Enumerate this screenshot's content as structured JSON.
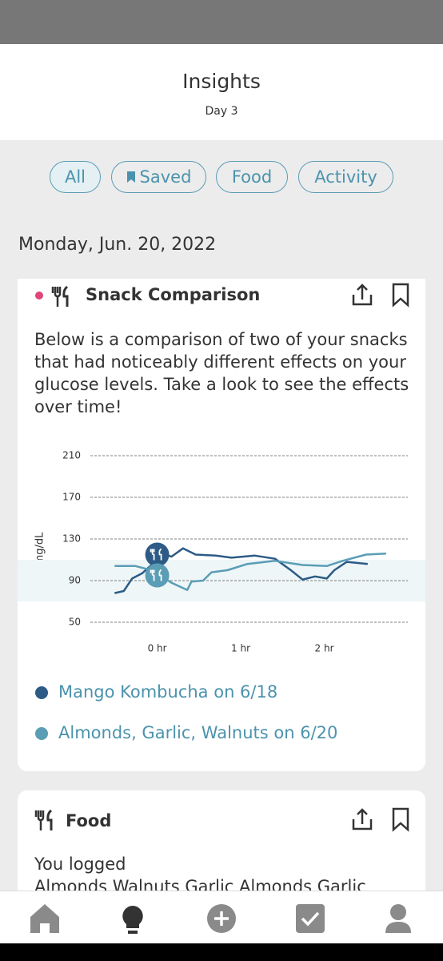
{
  "header": {
    "title": "Insights",
    "subtitle": "Day 3"
  },
  "filters": [
    "All",
    "Saved",
    "Food",
    "Activity"
  ],
  "date": "Monday, Jun. 20, 2022",
  "cards": [
    {
      "title": "Snack Comparison",
      "body": "Below is a comparison of two of your snacks that had noticeably different effects on your glucose levels. Take a look to see the effects over time!"
    },
    {
      "title": "Food",
      "body": "You logged",
      "detail": "Almonds Walnuts Garlic Almonds Garlic"
    }
  ],
  "chart_data": {
    "type": "line",
    "ylabel": "mg/dL",
    "xlim": [
      -0.8,
      3.0
    ],
    "xticks": [
      {
        "value": 0,
        "label": "0 hr"
      },
      {
        "value": 1,
        "label": "1 hr"
      },
      {
        "value": 2,
        "label": "2 hr"
      }
    ],
    "ylim": [
      42,
      218
    ],
    "yticks": [
      50,
      90,
      130,
      170,
      210
    ],
    "grid": true,
    "target_range": [
      70,
      110
    ],
    "series": [
      {
        "name": "Mango Kombucha on 6/18",
        "color": "#2d5b86",
        "x": [
          -0.51,
          -0.4,
          -0.3,
          -0.18,
          -0.07,
          0.03,
          0.17,
          0.31,
          0.46,
          0.7,
          0.89,
          1.17,
          1.41,
          1.6,
          1.74,
          1.89,
          2.03,
          2.12,
          2.27,
          2.52
        ],
        "values": [
          78,
          80,
          92,
          97,
          105,
          117,
          113,
          121,
          115,
          114,
          112,
          114,
          111,
          100,
          91,
          94,
          92,
          100,
          108,
          106
        ],
        "meal": {
          "x": 0,
          "value": 115
        }
      },
      {
        "name": "Almonds, Garlic, Walnuts on 6/20",
        "color": "#5a9db5",
        "x": [
          -0.51,
          -0.26,
          -0.07,
          0.17,
          0.36,
          0.41,
          0.55,
          0.65,
          0.84,
          1.08,
          1.41,
          1.74,
          2.03,
          2.22,
          2.5,
          2.74
        ],
        "values": [
          104,
          104,
          100,
          88,
          81,
          89,
          90,
          98,
          100,
          106,
          109,
          105,
          104,
          109,
          115,
          116
        ],
        "meal": {
          "x": 0,
          "value": 95
        }
      }
    ]
  }
}
